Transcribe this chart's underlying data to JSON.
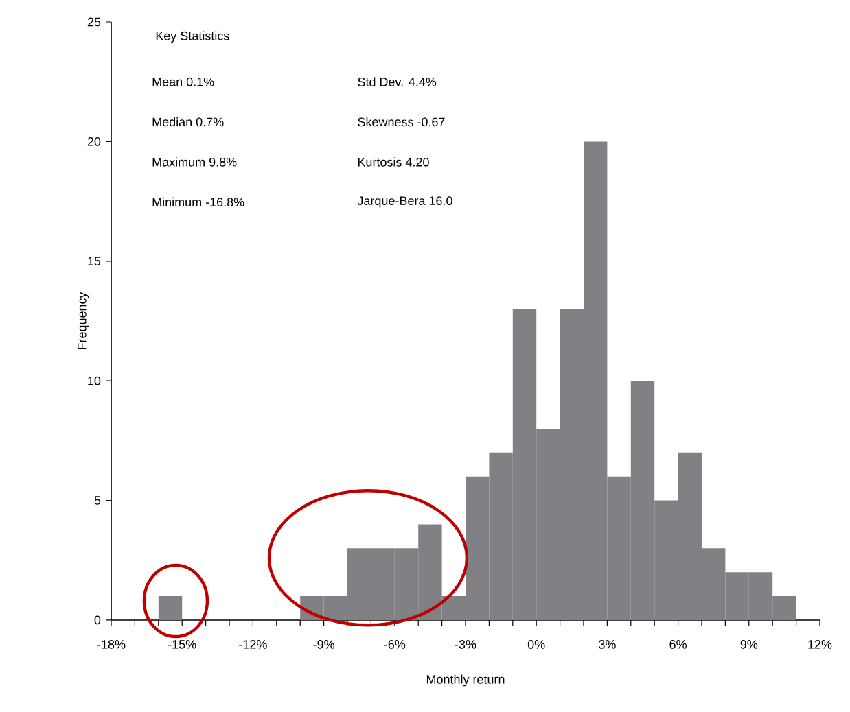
{
  "chart_data": {
    "type": "histogram",
    "xlabel": "Monthly return",
    "ylabel": "Frequency",
    "bins": [
      -18,
      -17,
      -16,
      -15,
      -14,
      -13,
      -12,
      -11,
      -10,
      -9,
      -8,
      -7,
      -6,
      -5,
      -4,
      -3,
      -2,
      -1,
      0,
      1,
      2,
      3,
      4,
      5,
      6,
      7,
      8,
      9,
      10,
      11,
      12
    ],
    "values": [
      0,
      0,
      1,
      0,
      0,
      0,
      0,
      0,
      1,
      1,
      3,
      3,
      3,
      4,
      1,
      6,
      7,
      13,
      8,
      13,
      20,
      6,
      10,
      5,
      7,
      3,
      2,
      2,
      1,
      0
    ],
    "color": "#808085",
    "xlim": [
      -18,
      12
    ],
    "ylim": [
      0,
      25
    ],
    "xticks": [
      {
        "value": -18,
        "label": "-18%"
      },
      {
        "value": -17,
        "label": null
      },
      {
        "value": -16,
        "label": null
      },
      {
        "value": -15,
        "label": "-15%"
      },
      {
        "value": -14,
        "label": null
      },
      {
        "value": -13,
        "label": null
      },
      {
        "value": -12,
        "label": "-12%"
      },
      {
        "value": -11,
        "label": null
      },
      {
        "value": -10,
        "label": null
      },
      {
        "value": -9,
        "label": "-9%"
      },
      {
        "value": -8,
        "label": null
      },
      {
        "value": -7,
        "label": null
      },
      {
        "value": -6,
        "label": "-6%"
      },
      {
        "value": -5,
        "label": null
      },
      {
        "value": -4,
        "label": null
      },
      {
        "value": -3,
        "label": "-3%"
      },
      {
        "value": -2,
        "label": null
      },
      {
        "value": -1,
        "label": null
      },
      {
        "value": 0,
        "label": "0%"
      },
      {
        "value": 1,
        "label": null
      },
      {
        "value": 2,
        "label": null
      },
      {
        "value": 3,
        "label": "3%"
      },
      {
        "value": 4,
        "label": null
      },
      {
        "value": 5,
        "label": null
      },
      {
        "value": 6,
        "label": "6%"
      },
      {
        "value": 7,
        "label": null
      },
      {
        "value": 8,
        "label": null
      },
      {
        "value": 9,
        "label": "9%"
      },
      {
        "value": 10,
        "label": null
      },
      {
        "value": 11,
        "label": null
      },
      {
        "value": 12,
        "label": "12%"
      }
    ],
    "yticks": [
      0,
      5,
      10,
      15,
      20,
      25
    ],
    "annotations": [
      "Key Statistics",
      "Mean 0.1%",
      "Std Dev. 4.4%",
      "Median 0.7%",
      "Skewness -0.67",
      "Maximum 9.8%",
      "Kurtosis 4.20",
      "Minimum -16.8%",
      "Jarque-Bera 16.0"
    ]
  }
}
